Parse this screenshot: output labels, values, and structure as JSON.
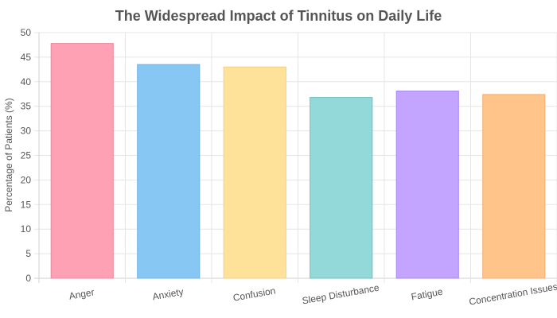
{
  "chart_data": {
    "type": "bar",
    "title": "The Widespread Impact of Tinnitus on Daily Life",
    "xlabel": "",
    "ylabel": "Percentage of Patients (%)",
    "ylim": [
      0,
      50
    ],
    "ytick_step": 5,
    "grid": true,
    "legend": "none",
    "categories": [
      "Anger",
      "Anxiety",
      "Confusion",
      "Sleep Disturbance",
      "Fatigue",
      "Concentration Issues"
    ],
    "values": [
      47.8,
      43.5,
      43.0,
      36.8,
      38.1,
      37.4
    ],
    "fill_colors": [
      "#ffa1b5",
      "#86c7f3",
      "#ffe29a",
      "#93d9d9",
      "#c3a4fe",
      "#ffc48a"
    ],
    "border_colors": [
      "#e78aa0",
      "#6fb4e6",
      "#f0cf84",
      "#6cc0c0",
      "#a787f0",
      "#f2ae70"
    ]
  }
}
